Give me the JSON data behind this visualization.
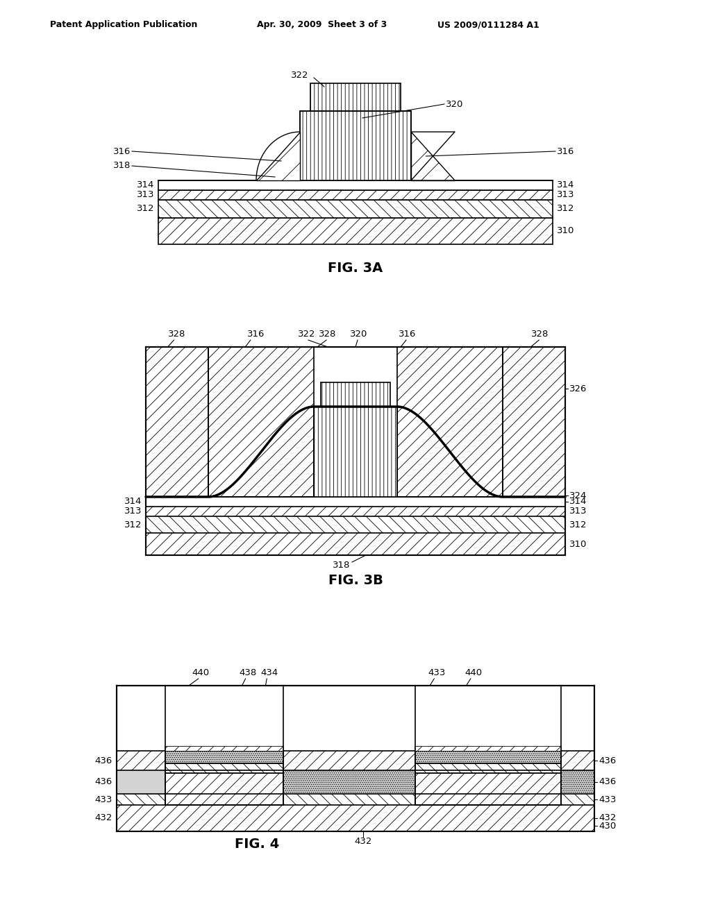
{
  "title_line1": "Patent Application Publication",
  "title_date": "Apr. 30, 2009  Sheet 3 of 3",
  "title_patent": "US 2009/0111284 A1",
  "fig3a_label": "FIG. 3A",
  "fig3b_label": "FIG. 3B",
  "fig4_label": "FIG. 4",
  "bg_color": "#ffffff",
  "lc": "#000000"
}
